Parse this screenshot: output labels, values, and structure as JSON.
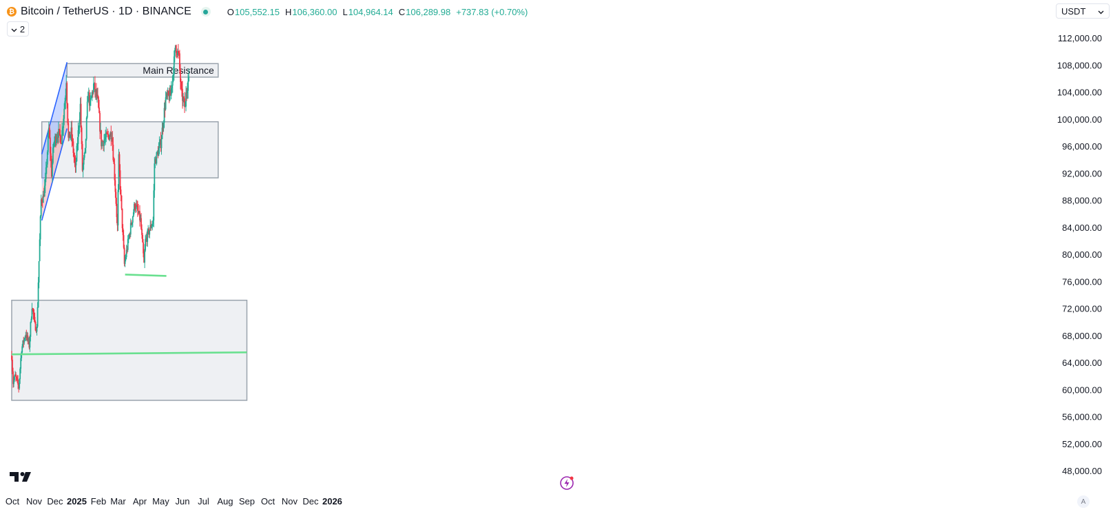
{
  "header": {
    "coin_icon": "bitcoin-coin-icon",
    "symbol": "Bitcoin / TetherUS · 1D · BINANCE",
    "open_label": "O",
    "open": "105,552.15",
    "high_label": "H",
    "high": "106,360.00",
    "low_label": "L",
    "low": "104,964.14",
    "close_label": "C",
    "close": "106,289.98",
    "change": "+737.83 (+0.70%)"
  },
  "indicators_toggle": {
    "icon": "chevron-down-icon",
    "count": "2"
  },
  "currency": {
    "label": "USDT",
    "icon": "chevron-down-icon"
  },
  "colors": {
    "up": "#22ab94",
    "down": "#f23645",
    "zone_fill": "#eef0f3",
    "zone_border": "#9aa3ad",
    "support_line": "#69e08f",
    "channel": "#2962ff"
  },
  "chart_data": {
    "type": "candlestick",
    "timeframe": "1D",
    "y_axis": {
      "ticks": [
        112000,
        108000,
        104000,
        100000,
        96000,
        92000,
        88000,
        84000,
        80000,
        76000,
        72000,
        68000,
        64000,
        60000,
        56000,
        52000,
        48000
      ],
      "tick_labels": [
        "112,000.00",
        "108,000.00",
        "104,000.00",
        "100,000.00",
        "96,000.00",
        "92,000.00",
        "88,000.00",
        "84,000.00",
        "80,000.00",
        "76,000.00",
        "72,000.00",
        "68,000.00",
        "64,000.00",
        "60,000.00",
        "56,000.00",
        "52,000.00",
        "48,000.00"
      ]
    },
    "x_axis": {
      "tick_labels": [
        "Oct",
        "Nov",
        "Dec",
        "2025",
        "Feb",
        "Mar",
        "Apr",
        "May",
        "Jun",
        "Jul",
        "Aug",
        "Sep",
        "Oct",
        "Nov",
        "Dec",
        "2026"
      ],
      "bold": [
        "2025",
        "2026"
      ]
    },
    "x_range": [
      "2024-10-01",
      "2026-01-01"
    ],
    "series_anchor_points": [
      [
        "2024-09-30",
        65000
      ],
      [
        "2024-10-02",
        61000
      ],
      [
        "2024-10-05",
        62000
      ],
      [
        "2024-10-10",
        60300
      ],
      [
        "2024-10-14",
        66000
      ],
      [
        "2024-10-20",
        68300
      ],
      [
        "2024-10-25",
        66500
      ],
      [
        "2024-10-29",
        72500
      ],
      [
        "2024-11-02",
        69500
      ],
      [
        "2024-11-05",
        69000
      ],
      [
        "2024-11-07",
        76000
      ],
      [
        "2024-11-11",
        88000
      ],
      [
        "2024-11-14",
        88500
      ],
      [
        "2024-11-17",
        90500
      ],
      [
        "2024-11-22",
        98500
      ],
      [
        "2024-11-26",
        92000
      ],
      [
        "2024-11-29",
        96500
      ],
      [
        "2024-12-05",
        98000
      ],
      [
        "2024-12-10",
        97000
      ],
      [
        "2024-12-16",
        104000
      ],
      [
        "2024-12-17",
        106000
      ],
      [
        "2024-12-20",
        97000
      ],
      [
        "2024-12-24",
        98000
      ],
      [
        "2024-12-30",
        92500
      ],
      [
        "2025-01-06",
        102000
      ],
      [
        "2025-01-09",
        92500
      ],
      [
        "2025-01-13",
        95000
      ],
      [
        "2025-01-17",
        104000
      ],
      [
        "2025-01-20",
        102000
      ],
      [
        "2025-01-25",
        105000
      ],
      [
        "2025-01-31",
        102500
      ],
      [
        "2025-02-05",
        96500
      ],
      [
        "2025-02-20",
        98000
      ],
      [
        "2025-02-24",
        91500
      ],
      [
        "2025-02-28",
        84000
      ],
      [
        "2025-03-02",
        94000
      ],
      [
        "2025-03-10",
        78500
      ],
      [
        "2025-03-18",
        83500
      ],
      [
        "2025-03-25",
        87500
      ],
      [
        "2025-04-02",
        85000
      ],
      [
        "2025-04-07",
        78500
      ],
      [
        "2025-04-09",
        82000
      ],
      [
        "2025-04-20",
        85000
      ],
      [
        "2025-04-22",
        93500
      ],
      [
        "2025-05-01",
        96500
      ],
      [
        "2025-05-08",
        103000
      ],
      [
        "2025-05-15",
        103500
      ],
      [
        "2025-05-21",
        109500
      ],
      [
        "2025-05-22",
        111000
      ],
      [
        "2025-05-27",
        109000
      ],
      [
        "2025-05-30",
        104000
      ],
      [
        "2025-06-05",
        101500
      ],
      [
        "2025-06-06",
        104300
      ],
      [
        "2025-06-09",
        105500
      ],
      [
        "2025-06-10",
        106290
      ]
    ],
    "annotations": {
      "zones": [
        {
          "name": "resistance-zone",
          "from": "2024-12-18",
          "to": "2025-07-22",
          "low": 106200,
          "high": 108200,
          "label": "Main Resistance"
        },
        {
          "name": "middle-zone",
          "from": "2024-11-12",
          "to": "2025-07-22",
          "low": 91300,
          "high": 99600,
          "label": ""
        },
        {
          "name": "lower-zone",
          "from": "2024-09-30",
          "to": "2025-09-01",
          "low": 58400,
          "high": 73200,
          "label": ""
        }
      ],
      "lines": [
        {
          "name": "long-support-line",
          "from": [
            "2024-09-30",
            65200
          ],
          "to": [
            "2025-09-01",
            65500
          ]
        },
        {
          "name": "april-support-line",
          "from": [
            "2025-03-11",
            77000
          ],
          "to": [
            "2025-05-09",
            76800
          ]
        }
      ],
      "channel": {
        "upper_from": [
          "2024-11-12",
          94800
        ],
        "upper_to": [
          "2024-12-18",
          108400
        ],
        "lower_from": [
          "2024-11-12",
          85000
        ],
        "lower_to": [
          "2024-12-18",
          98600
        ]
      }
    }
  },
  "footer": {
    "logo": "tradingview-logo-icon",
    "snapshot_icon": "lightning-snapshot-icon",
    "auto_scale": "A"
  }
}
